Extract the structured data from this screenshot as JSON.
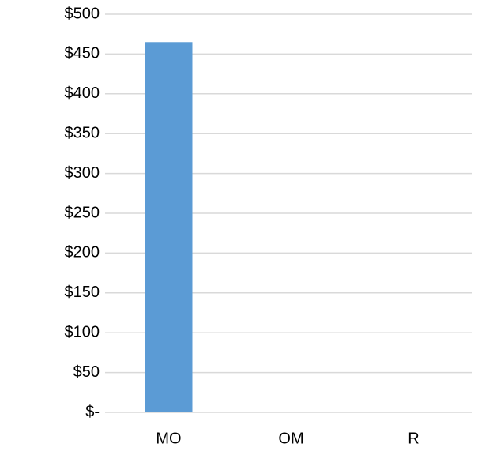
{
  "chart_data": {
    "type": "bar",
    "categories": [
      "MO",
      "OM",
      "R"
    ],
    "values": [
      465,
      0,
      0
    ],
    "color": "#5b9bd5",
    "ylim": [
      0,
      500
    ],
    "yticks": [
      {
        "value": 0,
        "label": "$-"
      },
      {
        "value": 50,
        "label": "$50"
      },
      {
        "value": 100,
        "label": "$100"
      },
      {
        "value": 150,
        "label": "$150"
      },
      {
        "value": 200,
        "label": "$200"
      },
      {
        "value": 250,
        "label": "$250"
      },
      {
        "value": 300,
        "label": "$300"
      },
      {
        "value": 350,
        "label": "$350"
      },
      {
        "value": 400,
        "label": "$400"
      },
      {
        "value": 450,
        "label": "$450"
      },
      {
        "value": 500,
        "label": "$500"
      }
    ],
    "grid": true
  }
}
